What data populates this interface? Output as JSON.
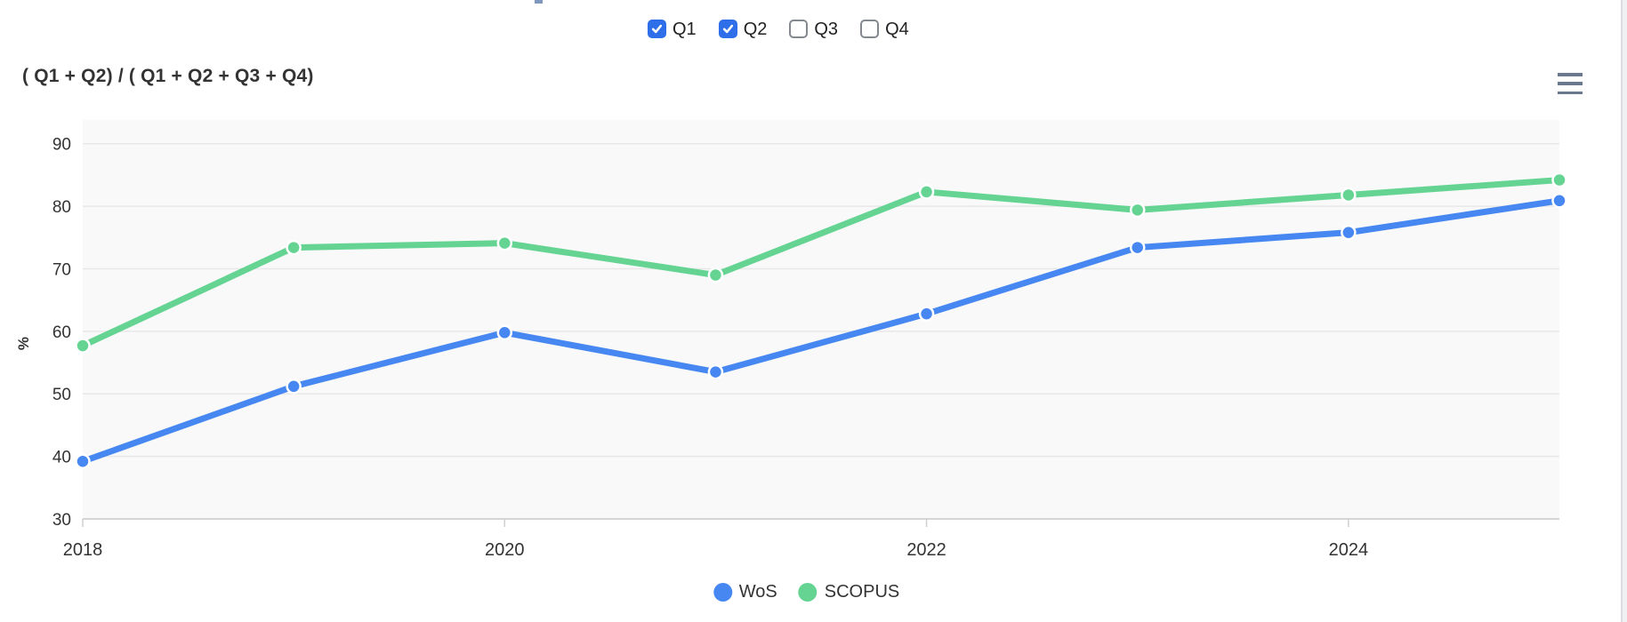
{
  "filters": {
    "items": [
      {
        "label": "Q1",
        "checked": true
      },
      {
        "label": "Q2",
        "checked": true
      },
      {
        "label": "Q3",
        "checked": false
      },
      {
        "label": "Q4",
        "checked": false
      }
    ]
  },
  "header": {
    "title": "( Q1 + Q2) / ( Q1 + Q2 + Q3 + Q4)",
    "menu_icon": "hamburger-icon"
  },
  "chart_data": {
    "type": "line",
    "title": "( Q1 + Q2) / ( Q1 + Q2 + Q3 + Q4)",
    "xlabel": "",
    "ylabel": "%",
    "x": [
      2018,
      2019,
      2020,
      2021,
      2022,
      2023,
      2024,
      2025
    ],
    "x_ticks": [
      2018,
      2020,
      2022,
      2024
    ],
    "x_tick_labels": [
      "2018",
      "2020",
      "2022",
      "2024"
    ],
    "y_ticks": [
      30,
      40,
      50,
      60,
      70,
      80,
      90
    ],
    "xlim": [
      2018,
      2025
    ],
    "ylim": [
      30,
      93.8
    ],
    "grid": true,
    "legend_position": "bottom",
    "series": [
      {
        "name": "WoS",
        "color": "#4687f1",
        "values": [
          39.2,
          51.2,
          59.8,
          53.5,
          62.8,
          73.4,
          75.8,
          80.9
        ]
      },
      {
        "name": "SCOPUS",
        "color": "#65d493",
        "values": [
          57.7,
          73.4,
          74.1,
          69.0,
          82.3,
          79.4,
          81.8,
          84.2
        ]
      }
    ],
    "colors": {
      "plot_background": "#f9f9f9",
      "gridline": "#e8e8e8",
      "axis_line": "#d4d5d8",
      "tick": "#cfcfcf",
      "label_text": "#333333",
      "checkbox_checked": "#2e6fe9"
    }
  }
}
